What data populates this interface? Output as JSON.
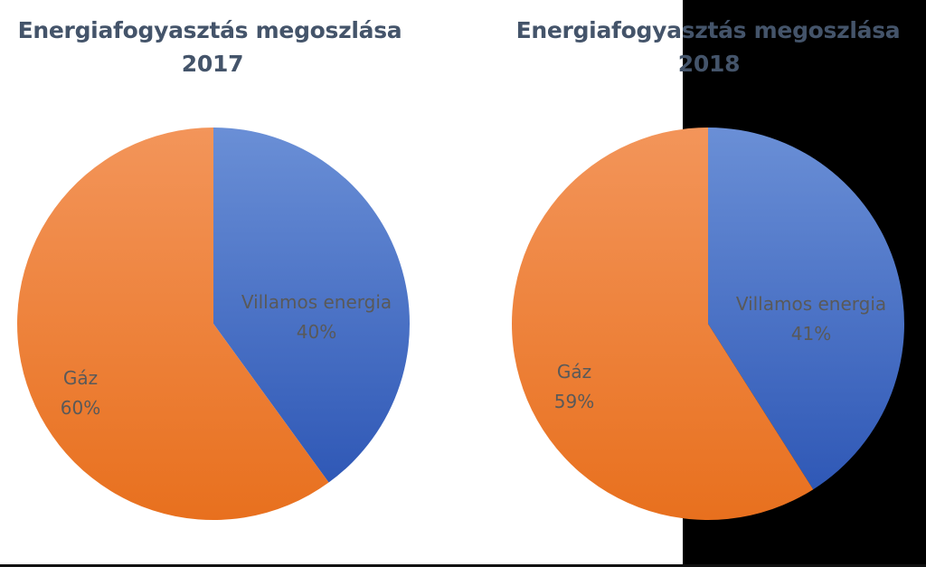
{
  "colors": {
    "title": "#44546A",
    "label": "#595959",
    "blue_light": "#6A8FD6",
    "blue_dark": "#2F58B6",
    "orange_light": "#F3955A",
    "orange_dark": "#E8701E",
    "dark_panel": "#000000"
  },
  "chart_data": [
    {
      "type": "pie",
      "title_line1": "Energiafogyasztás megoszlása",
      "title_line2": "2017",
      "slices": [
        {
          "category": "Villamos energia",
          "value": 40,
          "label": "40%",
          "color": "blue"
        },
        {
          "category": "Gáz",
          "value": 60,
          "label": "60%",
          "color": "orange"
        }
      ]
    },
    {
      "type": "pie",
      "title_line1": "Energiafogyasztás megoszlása",
      "title_line2": "2018",
      "slices": [
        {
          "category": "Villamos energia",
          "value": 41,
          "label": "41%",
          "color": "blue"
        },
        {
          "category": "Gáz",
          "value": 59,
          "label": "59%",
          "color": "orange"
        }
      ]
    }
  ]
}
